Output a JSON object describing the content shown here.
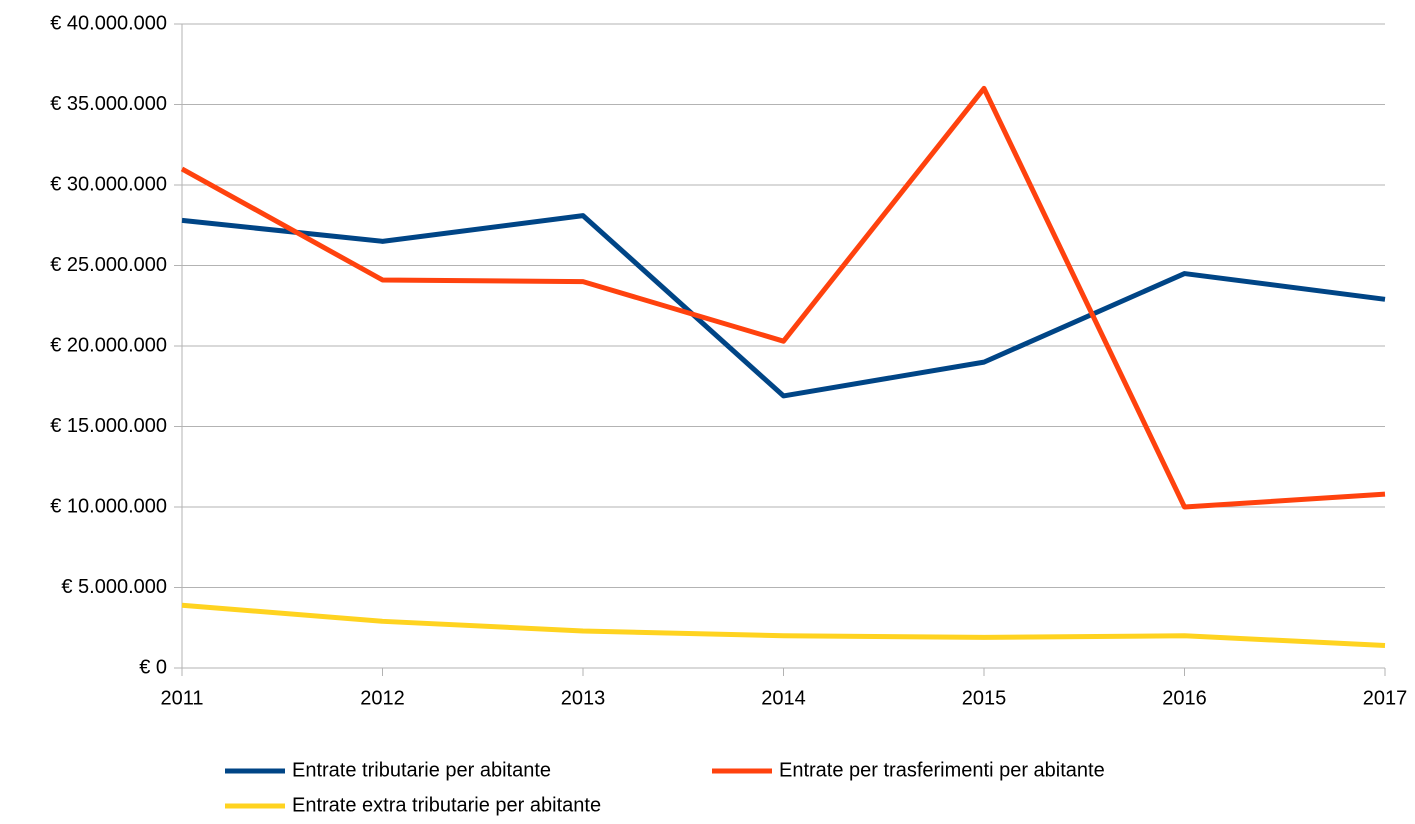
{
  "chart_data": {
    "type": "line",
    "x": [
      2011,
      2012,
      2013,
      2014,
      2015,
      2016,
      2017
    ],
    "xlim": [
      2011,
      2017
    ],
    "xticks": [
      2011,
      2012,
      2013,
      2014,
      2015,
      2016,
      2017
    ],
    "ylim": [
      0,
      40000000
    ],
    "yticks": [
      {
        "value": 0,
        "label": "€ 0"
      },
      {
        "value": 5000000,
        "label": "€ 5.000.000"
      },
      {
        "value": 10000000,
        "label": "€ 10.000.000"
      },
      {
        "value": 15000000,
        "label": "€ 15.000.000"
      },
      {
        "value": 20000000,
        "label": "€ 20.000.000"
      },
      {
        "value": 25000000,
        "label": "€ 25.000.000"
      },
      {
        "value": 30000000,
        "label": "€ 30.000.000"
      },
      {
        "value": 35000000,
        "label": "€ 35.000.000"
      },
      {
        "value": 40000000,
        "label": "€ 40.000.000"
      }
    ],
    "grid": true,
    "legend": "bottom",
    "series": [
      {
        "name": "Entrate tributarie per abitante",
        "color": "#004586",
        "values": [
          27800000,
          26500000,
          28100000,
          16900000,
          19000000,
          24500000,
          22900000
        ]
      },
      {
        "name": "Entrate per trasferimenti per abitante",
        "color": "#ff420e",
        "values": [
          31000000,
          24100000,
          24000000,
          20300000,
          36000000,
          10000000,
          10800000
        ]
      },
      {
        "name": "Entrate extra tributarie per abitante",
        "color": "#ffd320",
        "values": [
          3900000,
          2900000,
          2300000,
          2000000,
          1900000,
          2000000,
          1400000
        ]
      }
    ]
  }
}
